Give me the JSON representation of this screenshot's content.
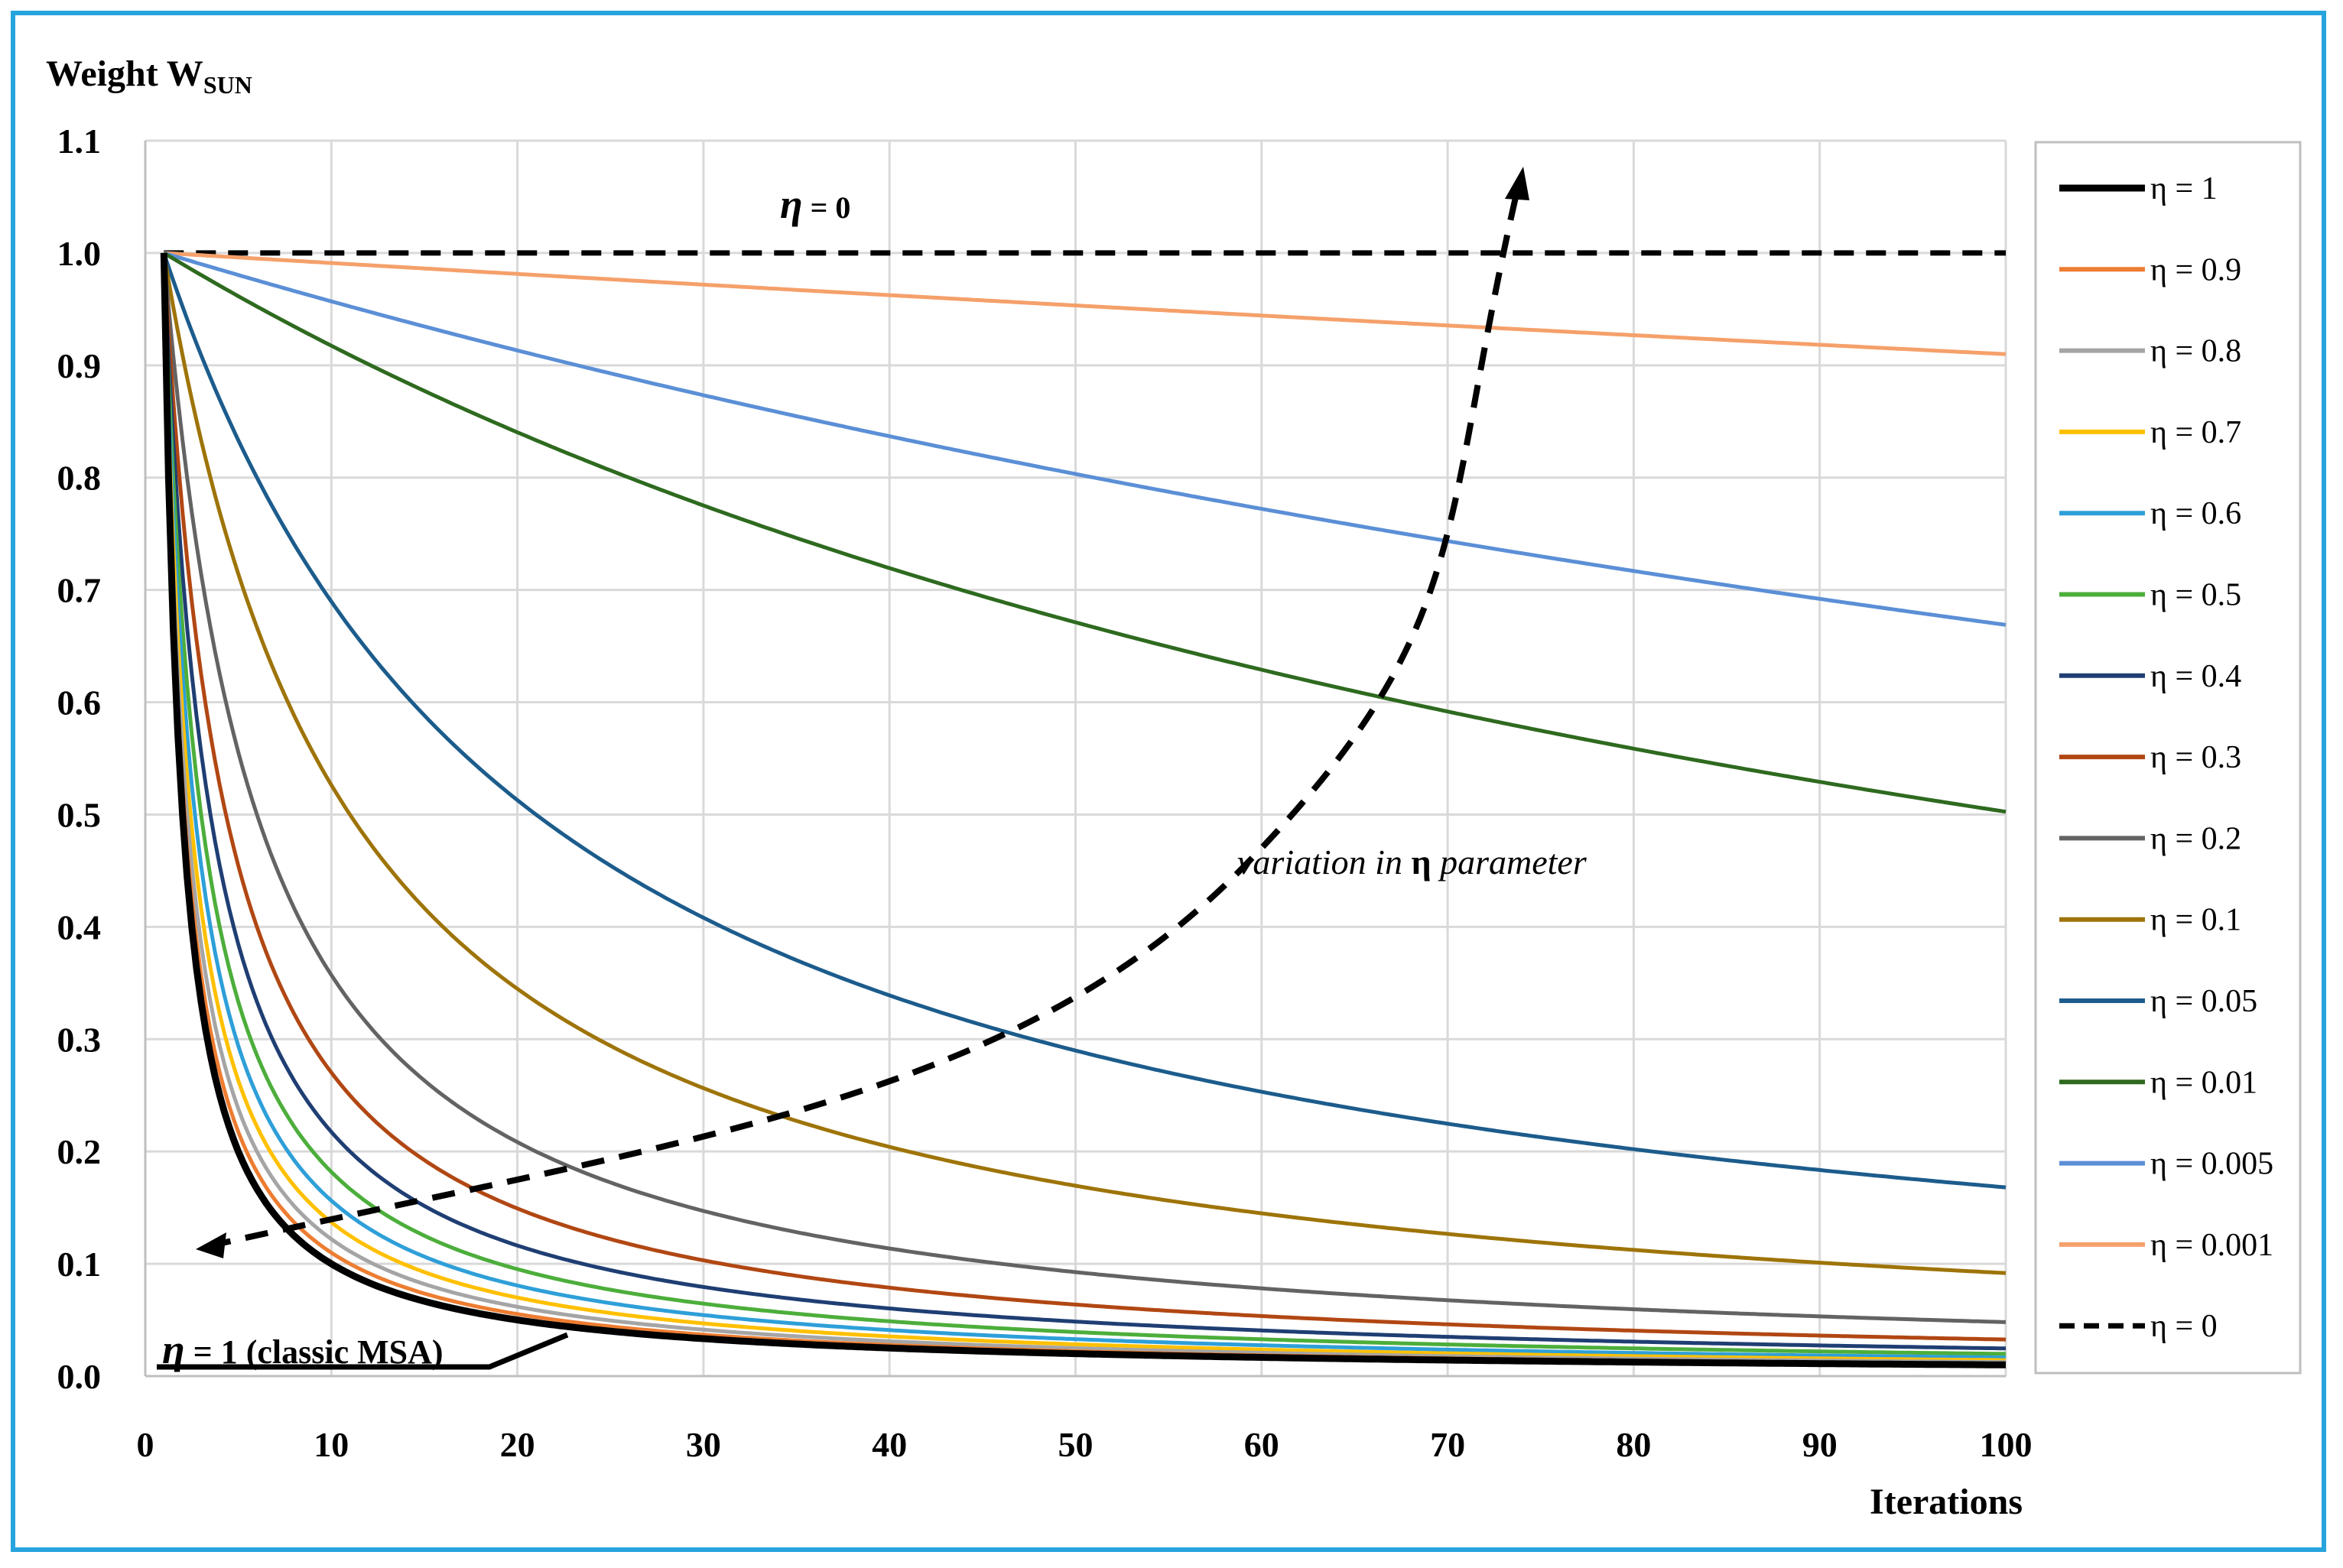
{
  "chart_data": {
    "type": "line",
    "ylabel": "Weight W",
    "ylabel_sub": "SUN",
    "xlabel": "Iterations",
    "xlim": [
      0,
      100
    ],
    "ylim": [
      0,
      1.1
    ],
    "x_ticks": [
      "0",
      "10",
      "20",
      "30",
      "40",
      "50",
      "60",
      "70",
      "80",
      "90",
      "100"
    ],
    "y_ticks": [
      "0.0",
      "0.1",
      "0.2",
      "0.3",
      "0.4",
      "0.5",
      "0.6",
      "0.7",
      "0.8",
      "0.9",
      "1.0",
      "1.1"
    ],
    "grid": true,
    "legend_position": "right",
    "series": [
      {
        "name": "η = 1",
        "eta": 1,
        "color": "#000000",
        "dash": false,
        "bold": true
      },
      {
        "name": "η = 0.9",
        "eta": 0.9,
        "color": "#ed7d31",
        "dash": false
      },
      {
        "name": "η = 0.8",
        "eta": 0.8,
        "color": "#a5a5a5",
        "dash": false
      },
      {
        "name": "η = 0.7",
        "eta": 0.7,
        "color": "#ffc000",
        "dash": false
      },
      {
        "name": "η = 0.6",
        "eta": 0.6,
        "color": "#2e9fd8",
        "dash": false
      },
      {
        "name": "η = 0.5",
        "eta": 0.5,
        "color": "#4cae3b",
        "dash": false
      },
      {
        "name": "η = 0.4",
        "eta": 0.4,
        "color": "#1f3e73",
        "dash": false
      },
      {
        "name": "η = 0.3",
        "eta": 0.3,
        "color": "#b14713",
        "dash": false
      },
      {
        "name": "η = 0.2",
        "eta": 0.2,
        "color": "#636363",
        "dash": false
      },
      {
        "name": "η = 0.1",
        "eta": 0.1,
        "color": "#9e7409",
        "dash": false
      },
      {
        "name": "η = 0.05",
        "eta": 0.05,
        "color": "#1c5c8c",
        "dash": false
      },
      {
        "name": "η = 0.01",
        "eta": 0.01,
        "color": "#2e6a1f",
        "dash": false
      },
      {
        "name": "η = 0.005",
        "eta": 0.005,
        "color": "#5b8fd6",
        "dash": false
      },
      {
        "name": "η = 0.001",
        "eta": 0.001,
        "color": "#f5a06b",
        "dash": false
      },
      {
        "name": "η = 0",
        "eta": 0,
        "color": "#000000",
        "dash": true
      }
    ],
    "annotations": {
      "eta_zero": "η = 0",
      "classic": "η = 1 (classic MSA)",
      "variation": "variation in η parameter"
    }
  }
}
